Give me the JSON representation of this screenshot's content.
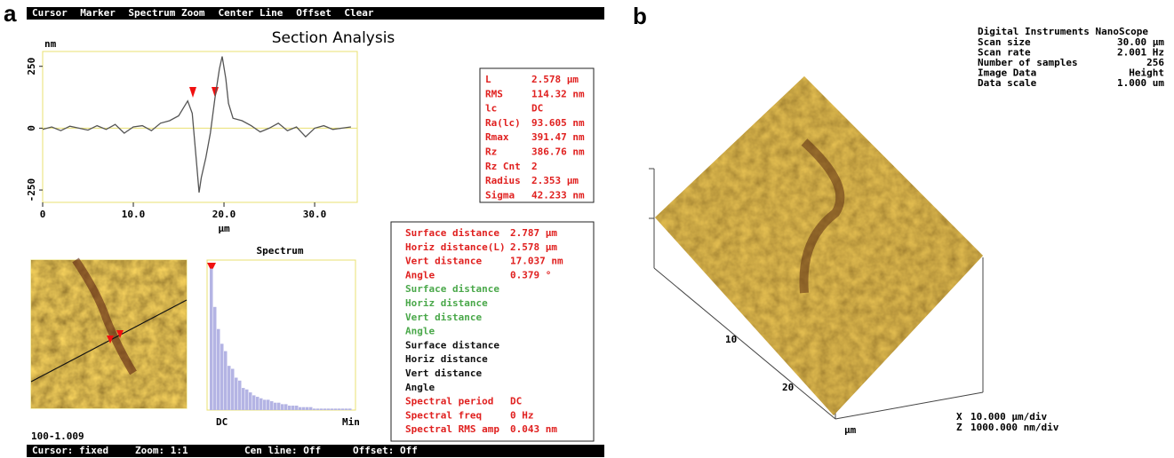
{
  "panel_a": {
    "label": "a",
    "menu": [
      "Cursor",
      "Marker",
      "Spectrum Zoom",
      "Center Line",
      "Offset",
      "Clear"
    ],
    "title": "Section Analysis",
    "profile": {
      "type": "line",
      "y_label": "nm",
      "x_label": "µm",
      "color": "#555555",
      "zero_line_color": "#e8e070",
      "x": [
        0,
        1,
        2,
        3,
        4,
        5,
        6,
        7,
        8,
        9,
        10,
        11,
        12,
        13,
        14,
        15,
        15.5,
        16,
        16.5,
        17,
        17.25,
        17.5,
        18,
        18.5,
        19,
        19.5,
        19.8,
        20.2,
        20.5,
        21,
        22,
        23,
        24,
        25,
        26,
        27,
        28,
        29,
        30,
        31,
        32,
        33,
        34
      ],
      "values": [
        -5,
        5,
        -10,
        8,
        0,
        -8,
        10,
        -5,
        15,
        -20,
        5,
        10,
        -10,
        20,
        30,
        50,
        80,
        110,
        60,
        -150,
        -260,
        -200,
        -120,
        -20,
        120,
        240,
        290,
        200,
        100,
        40,
        30,
        10,
        -15,
        0,
        20,
        -10,
        5,
        -35,
        0,
        10,
        -5,
        0,
        5
      ],
      "xlim": [
        0,
        34.7
      ],
      "ylim": [
        -300,
        310
      ],
      "xticks": [
        0,
        {
          "value": 10,
          "label": "10.0"
        },
        {
          "value": 20,
          "label": "20.0"
        },
        {
          "value": 30,
          "label": "30.0"
        }
      ],
      "yticks": [
        -250,
        0,
        250
      ]
    },
    "stats": {
      "color": "#e0201f",
      "rows": [
        [
          "L",
          "2.578 µm"
        ],
        [
          "RMS",
          "114.32 nm"
        ],
        [
          "lc",
          "DC"
        ],
        [
          "Ra(lc)",
          "93.605 nm"
        ],
        [
          "Rmax",
          "391.47 nm"
        ],
        [
          "Rz",
          "386.76 nm"
        ],
        [
          "Rz Cnt",
          "2"
        ],
        [
          "Radius",
          "2.353 µm"
        ],
        [
          "Sigma",
          "42.233 nm"
        ]
      ]
    },
    "image_caption": "100-1.009",
    "spectrum": {
      "type": "bar",
      "title": "Spectrum",
      "color": "#b4b4e4",
      "start_label": "DC",
      "end_label": "Min",
      "ylim": [
        0,
        100
      ],
      "values": [
        96,
        70,
        55,
        45,
        40,
        30,
        28,
        22,
        20,
        15,
        14,
        12,
        10,
        9,
        8,
        7,
        7,
        6,
        5,
        5,
        4,
        4,
        3,
        3,
        3,
        2,
        2,
        2,
        2,
        1,
        1,
        1,
        1,
        1,
        1,
        1,
        1,
        1,
        1,
        1
      ]
    },
    "measurements": [
      {
        "color": "#e0201f",
        "rows": [
          [
            "Surface distance",
            "2.787 µm"
          ],
          [
            "Horiz distance(L)",
            "2.578 µm"
          ],
          [
            "Vert distance",
            "17.037 nm"
          ],
          [
            "Angle",
            "0.379 °"
          ]
        ]
      },
      {
        "color": "#4aa84a",
        "rows": [
          [
            "Surface distance"
          ],
          [
            "Horiz distance"
          ],
          [
            "Vert distance"
          ],
          [
            "Angle"
          ]
        ]
      },
      {
        "color": "#111111",
        "rows": [
          [
            "Surface distance"
          ],
          [
            "Horiz distance"
          ],
          [
            "Vert distance"
          ],
          [
            "Angle"
          ]
        ]
      },
      {
        "color": "#e0201f",
        "rows": [
          [
            "Spectral period",
            "DC"
          ],
          [
            "Spectral freq",
            "0 Hz"
          ],
          [
            "Spectral RMS amp",
            "0.043 nm"
          ]
        ]
      }
    ],
    "status": [
      "Cursor: fixed",
      "Zoom: 1:1",
      "Cen line: Off",
      "Offset: Off"
    ]
  },
  "panel_b": {
    "label": "b",
    "info": {
      "title": "Digital Instruments NanoScope",
      "rows": [
        [
          "Scan size",
          "30.00 µm"
        ],
        [
          "Scan rate",
          "2.001 Hz"
        ],
        [
          "Number of samples",
          "256"
        ],
        [
          "Image Data",
          "Height"
        ],
        [
          "Data scale",
          "1.000 um"
        ]
      ]
    },
    "axis_labels": [
      "10",
      "20",
      "µm"
    ],
    "scale": [
      [
        "X",
        "10.000 µm/div"
      ],
      [
        "Z",
        "1000.000 nm/div"
      ]
    ]
  }
}
